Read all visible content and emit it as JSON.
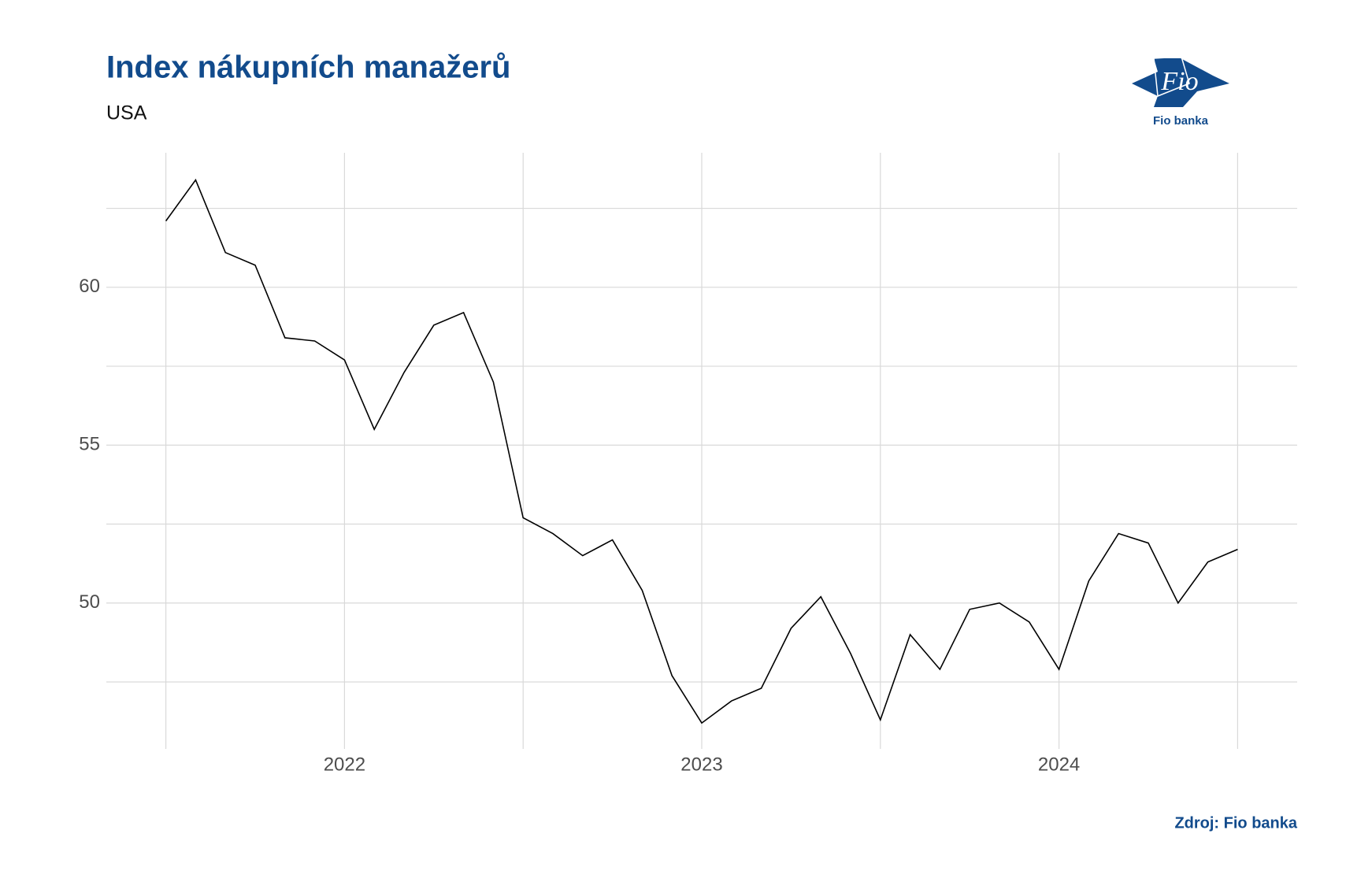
{
  "chart_data": {
    "type": "line",
    "title": "Index nákupních manažerů",
    "subtitle": "USA",
    "source": "Zdroj: Fio banka",
    "logo": {
      "mark": "Fio",
      "name": "Fio banka"
    },
    "x": [
      "2021-07",
      "2021-08",
      "2021-09",
      "2021-10",
      "2021-11",
      "2021-12",
      "2022-01",
      "2022-02",
      "2022-03",
      "2022-04",
      "2022-05",
      "2022-06",
      "2022-07",
      "2022-08",
      "2022-09",
      "2022-10",
      "2022-11",
      "2022-12",
      "2023-01",
      "2023-02",
      "2023-03",
      "2023-04",
      "2023-05",
      "2023-06",
      "2023-07",
      "2023-08",
      "2023-09",
      "2023-10",
      "2023-11",
      "2023-12",
      "2024-01",
      "2024-02",
      "2024-03",
      "2024-04",
      "2024-05",
      "2024-06",
      "2024-07"
    ],
    "series": [
      {
        "name": "USA",
        "color": "#000000",
        "values": [
          62.1,
          63.4,
          61.1,
          60.7,
          58.4,
          58.3,
          57.7,
          55.5,
          57.3,
          58.8,
          59.2,
          57.0,
          52.7,
          52.2,
          51.5,
          52.0,
          50.4,
          47.7,
          46.2,
          46.9,
          47.3,
          49.2,
          50.2,
          48.4,
          46.3,
          49.0,
          47.9,
          49.8,
          50.0,
          49.4,
          47.9,
          50.7,
          52.2,
          51.9,
          50.0,
          51.3,
          51.7
        ]
      }
    ],
    "xlim": [
      "2021-05",
      "2024-09"
    ],
    "xticks": [
      {
        "value": "2022-01",
        "label": "2022"
      },
      {
        "value": "2023-01",
        "label": "2023"
      },
      {
        "value": "2024-01",
        "label": "2024"
      }
    ],
    "x_minor_grid": [
      "2021-07",
      "2022-07",
      "2023-07",
      "2024-07"
    ],
    "ylim": [
      45.38,
      64.26
    ],
    "yticks": [
      50,
      55,
      60
    ],
    "y_minor_grid": [
      47.5,
      52.5,
      57.5,
      62.5
    ],
    "grid": true
  }
}
